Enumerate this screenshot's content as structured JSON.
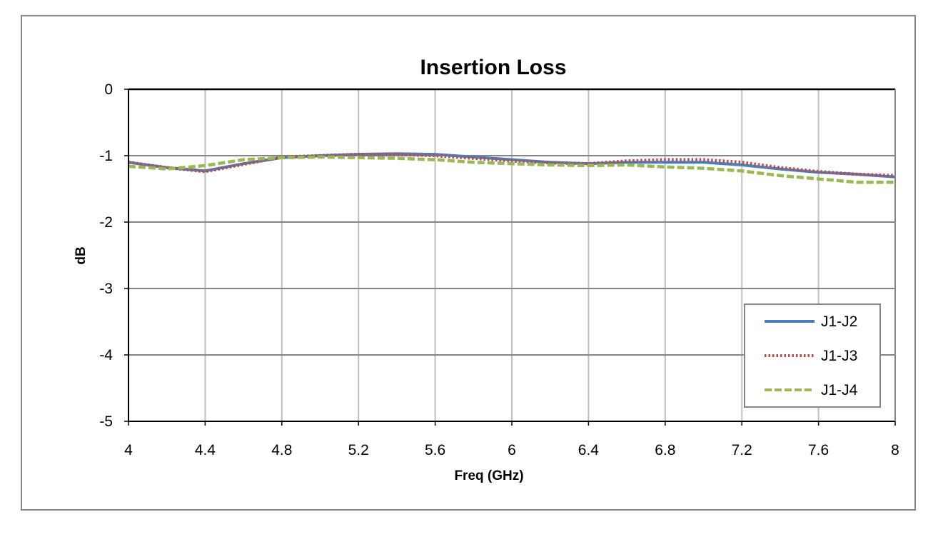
{
  "chart_data": {
    "type": "line",
    "title": "Insertion Loss",
    "xlabel": "Freq (GHz)",
    "ylabel": "dB",
    "xlim": [
      4,
      8
    ],
    "ylim": [
      -5,
      0
    ],
    "x_ticks": [
      "4",
      "4.4",
      "4.8",
      "5.2",
      "5.6",
      "6",
      "6.4",
      "6.8",
      "7.2",
      "7.6",
      "8"
    ],
    "y_ticks": [
      "0",
      "-1",
      "-2",
      "-3",
      "-4",
      "-5"
    ],
    "grid": true,
    "legend_position": "bottom-right",
    "x": [
      4.0,
      4.2,
      4.4,
      4.6,
      4.8,
      5.0,
      5.2,
      5.4,
      5.6,
      5.8,
      6.0,
      6.2,
      6.4,
      6.6,
      6.8,
      7.0,
      7.2,
      7.4,
      7.6,
      7.8,
      8.0
    ],
    "series": [
      {
        "name": "J1-J2",
        "color": "#4a7ebb",
        "style": "solid",
        "values": [
          -1.1,
          -1.18,
          -1.23,
          -1.12,
          -1.03,
          -1.0,
          -0.98,
          -0.97,
          -0.98,
          -1.02,
          -1.06,
          -1.1,
          -1.12,
          -1.1,
          -1.1,
          -1.1,
          -1.14,
          -1.2,
          -1.25,
          -1.28,
          -1.32
        ]
      },
      {
        "name": "J1-J3",
        "color": "#be4b48",
        "style": "dotted",
        "values": [
          -1.1,
          -1.18,
          -1.24,
          -1.13,
          -1.02,
          -1.0,
          -0.98,
          -0.98,
          -1.0,
          -1.04,
          -1.08,
          -1.11,
          -1.12,
          -1.08,
          -1.06,
          -1.06,
          -1.1,
          -1.18,
          -1.24,
          -1.28,
          -1.3
        ]
      },
      {
        "name": "J1-J4",
        "color": "#98b954",
        "style": "dashed",
        "values": [
          -1.16,
          -1.2,
          -1.15,
          -1.06,
          -1.03,
          -1.02,
          -1.03,
          -1.04,
          -1.06,
          -1.1,
          -1.12,
          -1.14,
          -1.15,
          -1.14,
          -1.17,
          -1.19,
          -1.23,
          -1.3,
          -1.35,
          -1.4,
          -1.4
        ]
      }
    ]
  }
}
